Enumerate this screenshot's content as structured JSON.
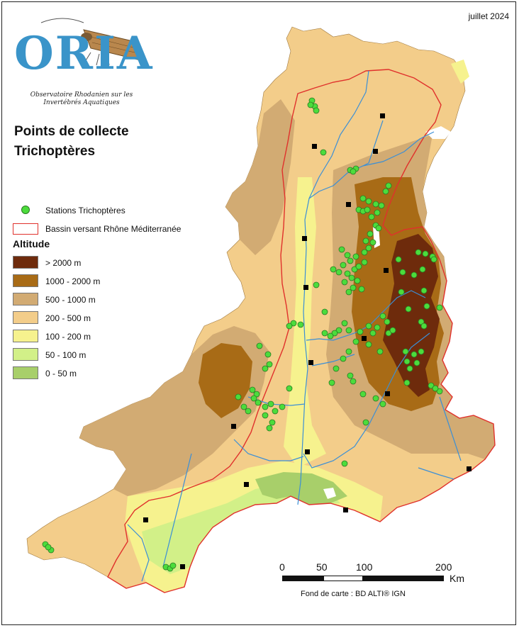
{
  "date": "juillet 2024",
  "logo": {
    "text": "ORIA",
    "subtitle_line1": "Observatoire Rhodanien sur les",
    "subtitle_line2": "Invertébrés Aquatiques"
  },
  "title": {
    "line1": "Points de collecte",
    "line2": "Trichoptères"
  },
  "legend": {
    "stations_label": "Stations Trichoptères",
    "basin_label": "Bassin versant Rhône Méditerranée",
    "altitude_title": "Altitude",
    "classes": [
      {
        "label": "> 2000 m",
        "color": "#6e2b0c"
      },
      {
        "label": "1000 - 2000 m",
        "color": "#a86b16"
      },
      {
        "label": "500 - 1000 m",
        "color": "#d2ab73"
      },
      {
        "label": "200 - 500 m",
        "color": "#f3cd8a"
      },
      {
        "label": "100 - 200 m",
        "color": "#f6f28e"
      },
      {
        "label": "50 - 100 m",
        "color": "#d2f088"
      },
      {
        "label": "0 - 50 m",
        "color": "#a8cf6a"
      }
    ]
  },
  "scale": {
    "ticks": [
      "0",
      "50",
      "100",
      "200"
    ],
    "unit": "Km"
  },
  "source": "Fond de carte : BD ALTI® IGN",
  "colors": {
    "station": "#4cdc3c",
    "basin_outline": "#e0312c",
    "river": "#3b8fd6",
    "city": "#000000"
  }
}
